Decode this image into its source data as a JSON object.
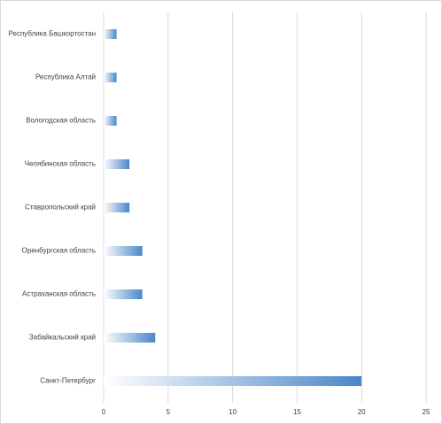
{
  "chart_data": {
    "type": "barh",
    "categories": [
      "Республика Башкортостан",
      "Республика Алтай",
      "Вологодская область",
      "Челябинская область",
      "Ставропольский край",
      "Оренбургская область",
      "Астраханская область",
      "Забайкальский край",
      "Санкт-Петербург"
    ],
    "values": [
      1,
      1,
      1,
      2,
      2,
      3,
      3,
      4,
      20
    ],
    "color": "#4a86c8",
    "xlim": [
      0,
      25
    ],
    "xticks": [
      0,
      5,
      10,
      15,
      20,
      25
    ],
    "grid": true
  }
}
